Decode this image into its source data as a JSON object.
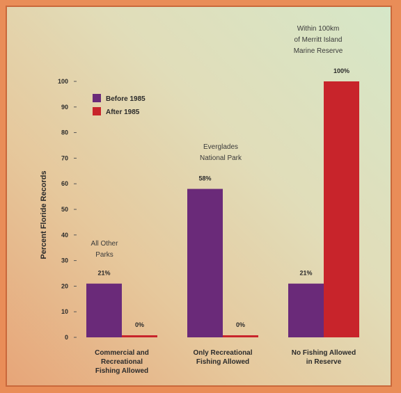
{
  "chart_data": {
    "type": "bar",
    "title": "",
    "xlabel": "",
    "ylabel": "Percent Floride Records",
    "ylim": [
      0,
      100
    ],
    "yticks": [
      0,
      10,
      20,
      30,
      40,
      50,
      60,
      70,
      80,
      90,
      100
    ],
    "grid": false,
    "legend_position": "top-left",
    "categories": [
      [
        "Commercial and",
        "Recreational",
        "Fishing Allowed"
      ],
      [
        "Only Recreational",
        "Fishing Allowed"
      ],
      [
        "No Fishing Allowed",
        "in Reserve"
      ]
    ],
    "series": [
      {
        "name": "Before 1985",
        "color": "#6a2a79",
        "values": [
          21,
          58,
          21
        ]
      },
      {
        "name": "After 1985",
        "color": "#c8242b",
        "values": [
          0,
          0,
          100
        ]
      }
    ],
    "data_labels": [
      [
        "21%",
        "0%"
      ],
      [
        "58%",
        "0%"
      ],
      [
        "21%",
        "100%"
      ]
    ],
    "annotations": [
      {
        "lines": [
          "All Other",
          "Parks"
        ],
        "category": 0
      },
      {
        "lines": [
          "Everglades",
          "National Park"
        ],
        "category": 1
      },
      {
        "lines": [
          "Within 100km",
          "of Merritt Island",
          "Marine Reserve"
        ],
        "category": 2
      }
    ]
  }
}
